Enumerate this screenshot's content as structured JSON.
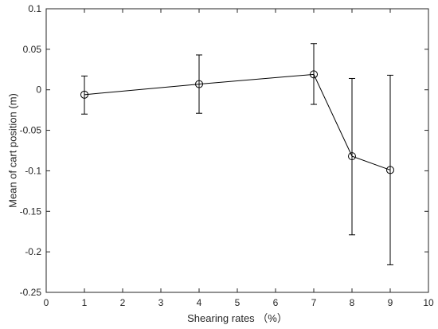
{
  "chart_data": {
    "type": "line",
    "title": "",
    "xlabel": "Shearing rates （%）",
    "ylabel": "Mean of cart position (m)",
    "xlim": [
      0,
      10
    ],
    "ylim": [
      -0.25,
      0.1
    ],
    "xticks": [
      0,
      1,
      2,
      3,
      4,
      5,
      6,
      7,
      8,
      9,
      10
    ],
    "xtick_labels": [
      "0",
      "1",
      "2",
      "3",
      "4",
      "5",
      "6",
      "7",
      "8",
      "9",
      "10"
    ],
    "yticks": [
      0.1,
      0.05,
      0,
      -0.05,
      -0.1,
      -0.15,
      -0.2,
      -0.25
    ],
    "ytick_labels": [
      "0.1",
      "0.05",
      "0",
      "-0.05",
      "-0.1",
      "-0.15",
      "-0.2",
      "-0.25"
    ],
    "grid": false,
    "box": true,
    "marker": "open-circle",
    "color": "#000000",
    "series": [
      {
        "x": [
          1,
          4,
          7,
          8,
          9
        ],
        "y": [
          -0.006,
          0.007,
          0.019,
          -0.082,
          -0.099
        ],
        "err_low": [
          -0.03,
          -0.029,
          -0.018,
          -0.179,
          -0.216
        ],
        "err_high": [
          0.017,
          0.043,
          0.057,
          0.014,
          0.018
        ]
      }
    ]
  }
}
